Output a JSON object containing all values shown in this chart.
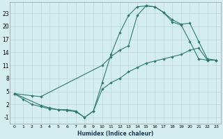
{
  "xlabel": "Humidex (Indice chaleur)",
  "bg_color": "#d4eef0",
  "grid_color": "#b8d8dc",
  "line_color": "#2d7a6a",
  "xlim": [
    -0.5,
    23.5
  ],
  "ylim": [
    -2.5,
    25.5
  ],
  "yticks": [
    -1,
    2,
    5,
    8,
    11,
    14,
    17,
    20,
    23
  ],
  "xticks": [
    0,
    1,
    2,
    3,
    4,
    5,
    6,
    7,
    8,
    9,
    10,
    11,
    12,
    13,
    14,
    15,
    16,
    17,
    18,
    19,
    20,
    21,
    22,
    23
  ],
  "line1_x": [
    0,
    1,
    2,
    3,
    4,
    5,
    6,
    7,
    8,
    9,
    10,
    11,
    12,
    13,
    14,
    15,
    16,
    17,
    18,
    19,
    20,
    21,
    22,
    23
  ],
  "line1_y": [
    4.5,
    3.2,
    2.0,
    1.5,
    1.0,
    0.8,
    0.6,
    0.3,
    -1.0,
    0.5,
    7.0,
    13.5,
    18.5,
    22.5,
    24.5,
    24.7,
    24.5,
    23.2,
    21.0,
    20.3,
    16.5,
    12.5,
    12.2,
    12.2
  ],
  "line2_x": [
    0,
    2,
    3,
    10,
    11,
    12,
    13,
    14,
    15,
    16,
    17,
    18,
    19,
    20,
    21,
    22,
    23
  ],
  "line2_y": [
    4.5,
    4.0,
    3.8,
    11.0,
    13.0,
    14.5,
    15.5,
    22.5,
    24.7,
    24.5,
    23.2,
    21.5,
    20.5,
    20.7,
    16.5,
    12.5,
    12.2
  ],
  "line3_x": [
    0,
    3,
    4,
    5,
    6,
    7,
    8,
    9,
    10,
    11,
    12,
    13,
    14,
    15,
    16,
    17,
    18,
    19,
    20,
    21,
    22,
    23
  ],
  "line3_y": [
    4.5,
    1.8,
    1.2,
    0.8,
    0.8,
    0.5,
    -1.0,
    0.5,
    5.5,
    7.0,
    8.0,
    9.5,
    10.5,
    11.5,
    12.0,
    12.5,
    13.0,
    13.5,
    14.5,
    15.0,
    12.2,
    12.2
  ]
}
